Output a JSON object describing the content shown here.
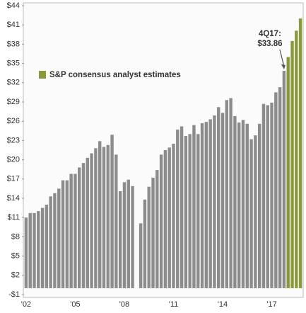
{
  "chart_data": {
    "type": "bar",
    "categories": [
      "'02",
      null,
      null,
      null,
      null,
      null,
      null,
      null,
      null,
      null,
      null,
      null,
      "'05",
      null,
      null,
      null,
      null,
      null,
      null,
      null,
      null,
      null,
      null,
      null,
      "'08",
      null,
      null,
      null,
      null,
      null,
      null,
      null,
      null,
      null,
      null,
      null,
      "'11",
      null,
      null,
      null,
      null,
      null,
      null,
      null,
      null,
      null,
      null,
      null,
      "'14",
      null,
      null,
      null,
      null,
      null,
      null,
      null,
      null,
      null,
      null,
      null,
      "'17",
      null,
      null,
      null,
      null,
      null,
      null,
      null
    ],
    "series": [
      {
        "color": "#8c8c8c",
        "values": [
          11.0,
          11.7,
          11.7,
          12.0,
          12.5,
          13.0,
          14.3,
          14.8,
          15.5,
          16.8,
          16.8,
          17.8,
          17.8,
          18.8,
          19.5,
          20.3,
          21.0,
          21.8,
          22.9,
          22.0,
          22.3,
          23.9,
          20.8,
          15.1,
          16.5,
          16.9,
          15.9,
          null,
          10.1,
          13.8,
          15.8,
          17.2,
          18.4,
          20.8,
          21.5,
          21.9,
          22.5,
          24.7,
          25.2,
          23.7,
          24.0,
          25.4,
          24.0,
          25.7,
          25.9,
          26.3,
          26.9,
          28.2,
          27.3,
          29.3,
          29.6,
          26.8,
          25.8,
          26.2,
          25.6,
          23.2,
          23.8,
          25.6,
          28.7,
          28.5,
          28.9,
          30.5,
          31.3,
          33.86,
          null,
          null,
          null,
          null
        ]
      },
      {
        "name": "S&P consensus analyst estimates",
        "color": "#8a9a3b",
        "values": [
          null,
          null,
          null,
          null,
          null,
          null,
          null,
          null,
          null,
          null,
          null,
          null,
          null,
          null,
          null,
          null,
          null,
          null,
          null,
          null,
          null,
          null,
          null,
          null,
          null,
          null,
          null,
          null,
          null,
          null,
          null,
          null,
          null,
          null,
          null,
          null,
          null,
          null,
          null,
          null,
          null,
          null,
          null,
          null,
          null,
          null,
          null,
          null,
          null,
          null,
          null,
          null,
          null,
          null,
          null,
          null,
          null,
          null,
          null,
          null,
          null,
          null,
          null,
          null,
          36.0,
          38.5,
          40.1,
          42.0
        ]
      }
    ],
    "annotation": [
      "4Q17:",
      "$33.86"
    ],
    "ylim": [
      -1,
      44
    ],
    "yticks": [
      {
        "value": -1,
        "label": "-$1"
      },
      {
        "value": 2,
        "label": "$2"
      },
      {
        "value": 5,
        "label": "$5"
      },
      {
        "value": 8,
        "label": "$8"
      },
      {
        "value": 11,
        "label": "$11"
      },
      {
        "value": 14,
        "label": "$14"
      },
      {
        "value": 17,
        "label": "$17"
      },
      {
        "value": 20,
        "label": "$20"
      },
      {
        "value": 23,
        "label": "$23"
      },
      {
        "value": 26,
        "label": "$26"
      },
      {
        "value": 29,
        "label": "$29"
      },
      {
        "value": 32,
        "label": "$32"
      },
      {
        "value": 35,
        "label": "$35"
      },
      {
        "value": 38,
        "label": "$38"
      },
      {
        "value": 41,
        "label": "$41"
      },
      {
        "value": 44,
        "label": "$44"
      }
    ],
    "grid": false
  }
}
